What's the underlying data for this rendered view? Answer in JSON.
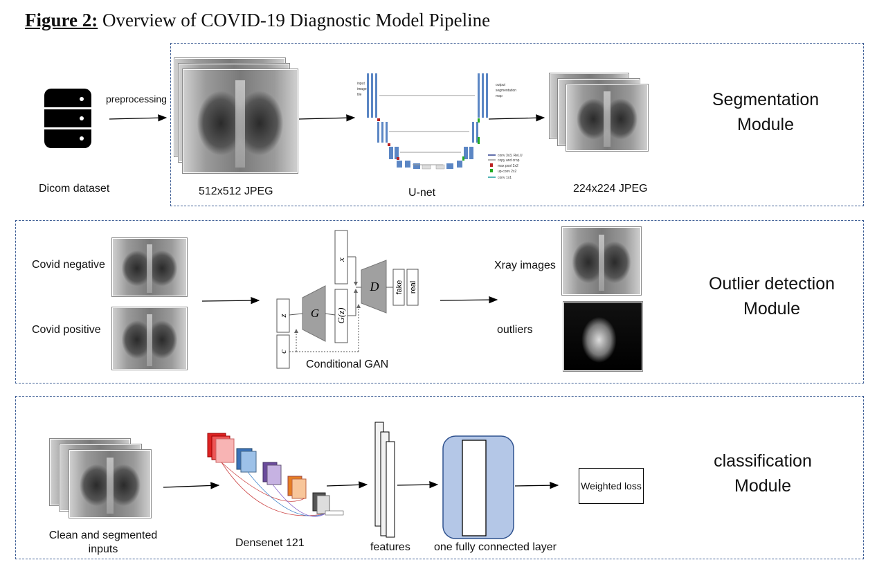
{
  "title": {
    "label": "Figure 2:",
    "text": "Overview of COVID-19 Diagnostic Model Pipeline"
  },
  "segmentation": {
    "module_title_1": "Segmentation",
    "module_title_2": "Module",
    "dataset_label": "Dicom dataset",
    "preprocessing_label": "preprocessing",
    "input_size": "512x512 JPEG",
    "unet_label": "U-net",
    "output_size": "224x224 JPEG",
    "unet_small": [
      "input image tile",
      "output segmentation map",
      "conv 3x3, ReLU",
      "copy and crop",
      "max pool 2x2",
      "up-conv 2x2",
      "conv 1x1"
    ]
  },
  "outlier": {
    "module_title_1": "Outlier detection",
    "module_title_2": "Module",
    "negative_label": "Covid negative",
    "positive_label": "Covid positive",
    "gan_label": "Conditional GAN",
    "x": "x",
    "z": "z",
    "c": "c",
    "g": "G",
    "gz": "G(z)",
    "d": "D",
    "fake": "fake",
    "real": "real",
    "xray_label": "Xray images",
    "outliers_label": "outliers"
  },
  "classification": {
    "module_title_1": "classification",
    "module_title_2": "Module",
    "inputs_label_1": "Clean and segmented",
    "inputs_label_2": "inputs",
    "densenet_label": "Densenet 121",
    "features_label": "features",
    "fc_label": "one  fully connected layer",
    "loss_label": "Weighted loss"
  }
}
